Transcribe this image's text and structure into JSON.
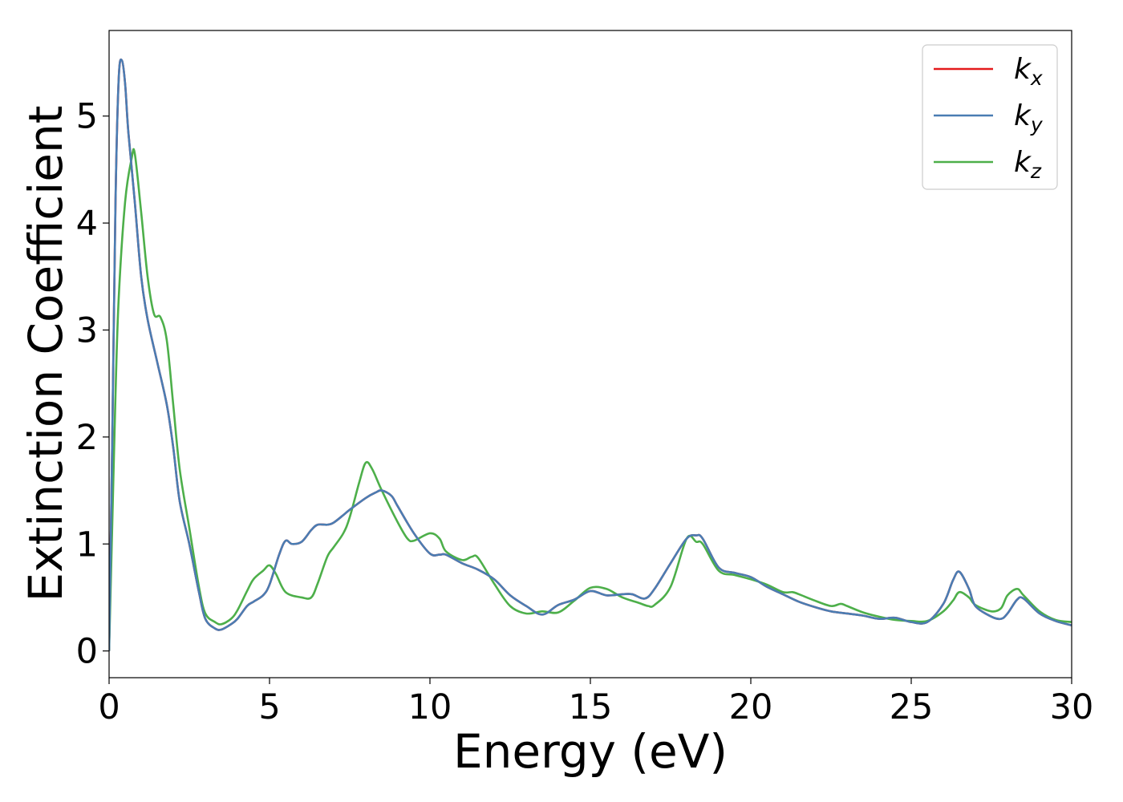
{
  "chart_data": {
    "type": "line",
    "title": "",
    "xlabel": "Energy (eV)",
    "ylabel": "Extinction Coefficient",
    "xlim": [
      0,
      30
    ],
    "ylim": [
      -0.25,
      5.8
    ],
    "x_ticks": [
      0,
      5,
      10,
      15,
      20,
      25,
      30
    ],
    "x_tick_labels": [
      "0",
      "5",
      "10",
      "15",
      "20",
      "25",
      "30"
    ],
    "y_ticks": [
      0,
      1,
      2,
      3,
      4,
      5
    ],
    "y_tick_labels": [
      "0",
      "1",
      "2",
      "3",
      "4",
      "5"
    ],
    "grid": false,
    "legend_placement": "top-right",
    "series": [
      {
        "name": "k_x",
        "legend_base": "k",
        "legend_sub": "x",
        "color": "#e41a1c",
        "x": [
          0,
          0.1,
          0.2,
          0.3,
          0.4,
          0.5,
          0.6,
          0.8,
          1.0,
          1.2,
          1.5,
          1.8,
          2.0,
          2.2,
          2.5,
          2.8,
          3.0,
          3.3,
          3.5,
          3.8,
          4.0,
          4.3,
          4.5,
          4.8,
          5.0,
          5.3,
          5.5,
          5.7,
          6.0,
          6.3,
          6.5,
          6.8,
          7.0,
          7.3,
          7.5,
          8.0,
          8.3,
          8.5,
          8.8,
          9.0,
          9.5,
          10.0,
          10.3,
          10.5,
          11.0,
          11.5,
          12.0,
          12.5,
          13.0,
          13.5,
          14.0,
          14.5,
          15.0,
          15.5,
          16.0,
          16.3,
          16.7,
          17.0,
          17.5,
          18.0,
          18.3,
          18.5,
          19.0,
          19.5,
          20.0,
          20.5,
          21.0,
          21.5,
          22.0,
          22.5,
          23.0,
          23.5,
          24.0,
          24.5,
          25.0,
          25.5,
          26.0,
          26.3,
          26.5,
          26.8,
          27.0,
          27.5,
          27.8,
          28.0,
          28.3,
          28.5,
          29.0,
          29.5,
          30.0
        ],
        "y": [
          0.0,
          2.0,
          4.2,
          5.35,
          5.52,
          5.3,
          4.85,
          4.2,
          3.5,
          3.1,
          2.7,
          2.3,
          1.9,
          1.4,
          1.0,
          0.55,
          0.3,
          0.21,
          0.2,
          0.25,
          0.3,
          0.42,
          0.46,
          0.52,
          0.62,
          0.9,
          1.03,
          1.0,
          1.02,
          1.13,
          1.18,
          1.18,
          1.2,
          1.27,
          1.32,
          1.43,
          1.48,
          1.5,
          1.45,
          1.35,
          1.1,
          0.91,
          0.9,
          0.9,
          0.82,
          0.76,
          0.67,
          0.52,
          0.42,
          0.34,
          0.43,
          0.48,
          0.56,
          0.52,
          0.53,
          0.53,
          0.49,
          0.58,
          0.82,
          1.05,
          1.08,
          1.05,
          0.78,
          0.73,
          0.69,
          0.6,
          0.53,
          0.46,
          0.41,
          0.37,
          0.35,
          0.33,
          0.3,
          0.31,
          0.27,
          0.27,
          0.44,
          0.66,
          0.74,
          0.58,
          0.42,
          0.32,
          0.3,
          0.35,
          0.48,
          0.49,
          0.35,
          0.28,
          0.24
        ]
      },
      {
        "name": "k_y",
        "legend_base": "k",
        "legend_sub": "y",
        "color": "#4a7db3",
        "x": [
          0,
          0.1,
          0.2,
          0.3,
          0.4,
          0.5,
          0.6,
          0.8,
          1.0,
          1.2,
          1.5,
          1.8,
          2.0,
          2.2,
          2.5,
          2.8,
          3.0,
          3.3,
          3.5,
          3.8,
          4.0,
          4.3,
          4.5,
          4.8,
          5.0,
          5.3,
          5.5,
          5.7,
          6.0,
          6.3,
          6.5,
          6.8,
          7.0,
          7.3,
          7.5,
          8.0,
          8.3,
          8.5,
          8.8,
          9.0,
          9.5,
          10.0,
          10.3,
          10.5,
          11.0,
          11.5,
          12.0,
          12.5,
          13.0,
          13.5,
          14.0,
          14.5,
          15.0,
          15.5,
          16.0,
          16.3,
          16.7,
          17.0,
          17.5,
          18.0,
          18.3,
          18.5,
          19.0,
          19.5,
          20.0,
          20.5,
          21.0,
          21.5,
          22.0,
          22.5,
          23.0,
          23.5,
          24.0,
          24.5,
          25.0,
          25.5,
          26.0,
          26.3,
          26.5,
          26.8,
          27.0,
          27.5,
          27.8,
          28.0,
          28.3,
          28.5,
          29.0,
          29.5,
          30.0
        ],
        "y": [
          0.0,
          2.0,
          4.2,
          5.35,
          5.52,
          5.3,
          4.85,
          4.2,
          3.5,
          3.1,
          2.7,
          2.3,
          1.9,
          1.4,
          1.0,
          0.55,
          0.3,
          0.21,
          0.2,
          0.25,
          0.3,
          0.42,
          0.46,
          0.52,
          0.62,
          0.9,
          1.03,
          1.0,
          1.02,
          1.13,
          1.18,
          1.18,
          1.2,
          1.27,
          1.32,
          1.43,
          1.48,
          1.5,
          1.45,
          1.35,
          1.1,
          0.91,
          0.9,
          0.9,
          0.82,
          0.76,
          0.67,
          0.52,
          0.42,
          0.34,
          0.43,
          0.48,
          0.56,
          0.52,
          0.53,
          0.53,
          0.49,
          0.58,
          0.82,
          1.05,
          1.08,
          1.05,
          0.78,
          0.73,
          0.69,
          0.6,
          0.53,
          0.46,
          0.41,
          0.37,
          0.35,
          0.33,
          0.3,
          0.31,
          0.27,
          0.27,
          0.44,
          0.66,
          0.74,
          0.58,
          0.42,
          0.32,
          0.3,
          0.35,
          0.48,
          0.49,
          0.35,
          0.28,
          0.24
        ]
      },
      {
        "name": "k_z",
        "legend_base": "k",
        "legend_sub": "z",
        "color": "#4daf4a",
        "x": [
          0,
          0.1,
          0.2,
          0.3,
          0.5,
          0.7,
          0.8,
          1.0,
          1.2,
          1.4,
          1.6,
          1.8,
          2.0,
          2.2,
          2.5,
          2.8,
          3.0,
          3.3,
          3.5,
          3.8,
          4.0,
          4.3,
          4.5,
          4.8,
          5.0,
          5.2,
          5.5,
          6.0,
          6.3,
          6.5,
          6.8,
          7.0,
          7.3,
          7.5,
          7.8,
          8.0,
          8.2,
          8.5,
          9.0,
          9.3,
          9.5,
          10.0,
          10.3,
          10.5,
          11.0,
          11.3,
          11.5,
          12.0,
          12.5,
          13.0,
          13.5,
          14.0,
          14.5,
          15.0,
          15.5,
          16.0,
          16.5,
          16.8,
          17.0,
          17.5,
          18.0,
          18.3,
          18.5,
          19.0,
          19.5,
          20.0,
          20.5,
          21.0,
          21.3,
          21.5,
          22.0,
          22.5,
          22.8,
          23.0,
          23.5,
          24.0,
          24.5,
          25.0,
          25.5,
          26.0,
          26.3,
          26.5,
          26.8,
          27.0,
          27.5,
          27.8,
          28.0,
          28.3,
          28.5,
          29.0,
          29.5,
          30.0
        ],
        "y": [
          0.0,
          1.2,
          2.4,
          3.3,
          4.2,
          4.6,
          4.65,
          4.1,
          3.5,
          3.15,
          3.12,
          2.9,
          2.3,
          1.7,
          1.15,
          0.6,
          0.35,
          0.27,
          0.25,
          0.3,
          0.38,
          0.56,
          0.67,
          0.75,
          0.8,
          0.72,
          0.55,
          0.5,
          0.5,
          0.63,
          0.88,
          0.97,
          1.1,
          1.25,
          1.58,
          1.76,
          1.7,
          1.5,
          1.2,
          1.05,
          1.03,
          1.1,
          1.05,
          0.93,
          0.85,
          0.88,
          0.87,
          0.63,
          0.42,
          0.35,
          0.37,
          0.36,
          0.47,
          0.59,
          0.58,
          0.5,
          0.45,
          0.42,
          0.43,
          0.6,
          1.05,
          1.02,
          1.0,
          0.75,
          0.71,
          0.67,
          0.62,
          0.55,
          0.55,
          0.53,
          0.47,
          0.42,
          0.44,
          0.42,
          0.36,
          0.32,
          0.29,
          0.28,
          0.28,
          0.37,
          0.47,
          0.55,
          0.5,
          0.43,
          0.37,
          0.4,
          0.52,
          0.58,
          0.52,
          0.37,
          0.29,
          0.27
        ]
      }
    ]
  }
}
